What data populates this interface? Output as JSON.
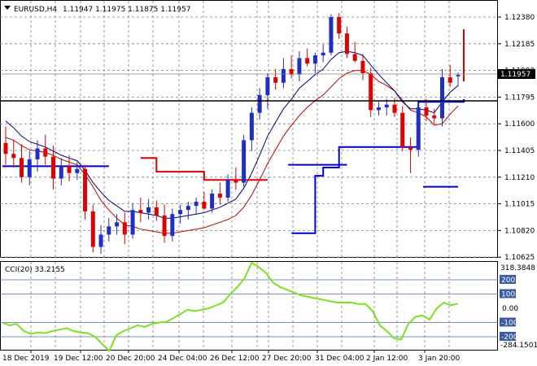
{
  "header": {
    "symbol": "EURUSD,H4",
    "ohlc": "1.11947 1.11975 1.11875 1.11957"
  },
  "price_axis": {
    "ticks": [
      "1.12380",
      "1.12185",
      "1.11990",
      "1.11795",
      "1.11600",
      "1.11405",
      "1.11210",
      "1.11015",
      "1.10820",
      "1.10625"
    ],
    "current_price": "1.11957"
  },
  "time_axis": {
    "labels": [
      "18 Dec 2019",
      "19 Dec 12:00",
      "20 Dec 20:00",
      "24 Dec 04:00",
      "26 Dec 12:00",
      "27 Dec 20:00",
      "31 Dec 04:00",
      "2 Jan 12:00",
      "3 Jan 20:00"
    ]
  },
  "cci_panel": {
    "title": "CCI(20) 33.2155",
    "axis_max": "318.3848",
    "axis_min": "-284.1501",
    "levels": [
      "200",
      "100",
      "0.00",
      "-100",
      "-200"
    ]
  },
  "colors": {
    "bull": "#1f2fc4",
    "bear": "#e00000",
    "cci": "#80e020",
    "support": "#0000cc",
    "resistance": "#dd0000",
    "ma_fast": "#000080",
    "ma_slow": "#c00000"
  },
  "chart_data": {
    "type": "candlestick",
    "y_range": [
      1.10625,
      1.12472
    ],
    "candles": [
      {
        "t": "18 Dec 2019",
        "o": 1.1146,
        "h": 1.1158,
        "l": 1.113,
        "c": 1.1138
      },
      {
        "t": "18 Dec",
        "o": 1.1138,
        "h": 1.1148,
        "l": 1.1128,
        "c": 1.1135
      },
      {
        "t": "18 Dec",
        "o": 1.1135,
        "h": 1.1145,
        "l": 1.1117,
        "c": 1.1121
      },
      {
        "t": "18 Dec",
        "o": 1.1121,
        "h": 1.114,
        "l": 1.1115,
        "c": 1.1134
      },
      {
        "t": "18 Dec",
        "o": 1.1134,
        "h": 1.1148,
        "l": 1.1125,
        "c": 1.1142
      },
      {
        "t": "18 Dec",
        "o": 1.1142,
        "h": 1.1152,
        "l": 1.113,
        "c": 1.1136
      },
      {
        "t": "18 Dec",
        "o": 1.1136,
        "h": 1.1144,
        "l": 1.1112,
        "c": 1.112
      },
      {
        "t": "19 Dec",
        "o": 1.112,
        "h": 1.1135,
        "l": 1.1115,
        "c": 1.1129
      },
      {
        "t": "19 Dec",
        "o": 1.1129,
        "h": 1.1137,
        "l": 1.1118,
        "c": 1.1124
      },
      {
        "t": "19 Dec",
        "o": 1.1124,
        "h": 1.1132,
        "l": 1.1119,
        "c": 1.1127
      },
      {
        "t": "19 Dec",
        "o": 1.1127,
        "h": 1.113,
        "l": 1.109,
        "c": 1.1096
      },
      {
        "t": "19 Dec",
        "o": 1.1096,
        "h": 1.1101,
        "l": 1.1066,
        "c": 1.107
      },
      {
        "t": "19 Dec",
        "o": 1.107,
        "h": 1.1086,
        "l": 1.1065,
        "c": 1.1079
      },
      {
        "t": "20 Dec",
        "o": 1.1079,
        "h": 1.1091,
        "l": 1.1074,
        "c": 1.1085
      },
      {
        "t": "20 Dec",
        "o": 1.1085,
        "h": 1.1094,
        "l": 1.1079,
        "c": 1.1088
      },
      {
        "t": "20 Dec",
        "o": 1.1088,
        "h": 1.1095,
        "l": 1.1072,
        "c": 1.1079
      },
      {
        "t": "20 Dec",
        "o": 1.1079,
        "h": 1.1102,
        "l": 1.1076,
        "c": 1.1097
      },
      {
        "t": "20 Dec",
        "o": 1.1097,
        "h": 1.1106,
        "l": 1.1088,
        "c": 1.1095
      },
      {
        "t": "20 Dec",
        "o": 1.1095,
        "h": 1.1105,
        "l": 1.109,
        "c": 1.1099
      },
      {
        "t": "23 Dec",
        "o": 1.1099,
        "h": 1.1104,
        "l": 1.1089,
        "c": 1.1093
      },
      {
        "t": "23 Dec",
        "o": 1.1093,
        "h": 1.1101,
        "l": 1.1073,
        "c": 1.1078
      },
      {
        "t": "23 Dec",
        "o": 1.1078,
        "h": 1.1098,
        "l": 1.1074,
        "c": 1.1094
      },
      {
        "t": "24 Dec",
        "o": 1.1094,
        "h": 1.1101,
        "l": 1.1087,
        "c": 1.1097
      },
      {
        "t": "24 Dec",
        "o": 1.1097,
        "h": 1.1103,
        "l": 1.109,
        "c": 1.11
      },
      {
        "t": "24 Dec",
        "o": 1.11,
        "h": 1.1106,
        "l": 1.1094,
        "c": 1.1103
      },
      {
        "t": "24 Dec",
        "o": 1.1103,
        "h": 1.111,
        "l": 1.1097,
        "c": 1.1098
      },
      {
        "t": "25 Dec",
        "o": 1.1098,
        "h": 1.1112,
        "l": 1.1095,
        "c": 1.1109
      },
      {
        "t": "25 Dec",
        "o": 1.1109,
        "h": 1.1117,
        "l": 1.1101,
        "c": 1.1106
      },
      {
        "t": "26 Dec",
        "o": 1.1106,
        "h": 1.1123,
        "l": 1.1103,
        "c": 1.1119
      },
      {
        "t": "26 Dec",
        "o": 1.1119,
        "h": 1.1128,
        "l": 1.1112,
        "c": 1.1117
      },
      {
        "t": "26 Dec",
        "o": 1.1117,
        "h": 1.1152,
        "l": 1.1114,
        "c": 1.1148
      },
      {
        "t": "26 Dec",
        "o": 1.1148,
        "h": 1.1172,
        "l": 1.114,
        "c": 1.1168
      },
      {
        "t": "27 Dec",
        "o": 1.1168,
        "h": 1.1186,
        "l": 1.1163,
        "c": 1.1181
      },
      {
        "t": "27 Dec",
        "o": 1.1181,
        "h": 1.1197,
        "l": 1.1171,
        "c": 1.1194
      },
      {
        "t": "27 Dec",
        "o": 1.1194,
        "h": 1.12,
        "l": 1.1185,
        "c": 1.119
      },
      {
        "t": "27 Dec",
        "o": 1.119,
        "h": 1.1208,
        "l": 1.1186,
        "c": 1.12
      },
      {
        "t": "30 Dec",
        "o": 1.12,
        "h": 1.121,
        "l": 1.1193,
        "c": 1.1196
      },
      {
        "t": "30 Dec",
        "o": 1.1196,
        "h": 1.1213,
        "l": 1.1191,
        "c": 1.1208
      },
      {
        "t": "30 Dec",
        "o": 1.1208,
        "h": 1.1215,
        "l": 1.1202,
        "c": 1.1204
      },
      {
        "t": "30 Dec",
        "o": 1.1204,
        "h": 1.1212,
        "l": 1.1197,
        "c": 1.121
      },
      {
        "t": "31 Dec",
        "o": 1.121,
        "h": 1.1218,
        "l": 1.1205,
        "c": 1.1212
      },
      {
        "t": "31 Dec",
        "o": 1.1212,
        "h": 1.124,
        "l": 1.121,
        "c": 1.1238
      },
      {
        "t": "31 Dec",
        "o": 1.1238,
        "h": 1.1241,
        "l": 1.1222,
        "c": 1.1226
      },
      {
        "t": "31 Dec",
        "o": 1.1226,
        "h": 1.1231,
        "l": 1.1208,
        "c": 1.1211
      },
      {
        "t": "2 Jan",
        "o": 1.1211,
        "h": 1.122,
        "l": 1.1205,
        "c": 1.1206
      },
      {
        "t": "2 Jan",
        "o": 1.1206,
        "h": 1.1211,
        "l": 1.1192,
        "c": 1.1197
      },
      {
        "t": "2 Jan",
        "o": 1.1197,
        "h": 1.1201,
        "l": 1.1165,
        "c": 1.117
      },
      {
        "t": "2 Jan",
        "o": 1.117,
        "h": 1.1176,
        "l": 1.1166,
        "c": 1.1172
      },
      {
        "t": "2 Jan",
        "o": 1.1172,
        "h": 1.1178,
        "l": 1.1166,
        "c": 1.1174
      },
      {
        "t": "2 Jan",
        "o": 1.1174,
        "h": 1.1179,
        "l": 1.1165,
        "c": 1.1168
      },
      {
        "t": "3 Jan",
        "o": 1.1168,
        "h": 1.1173,
        "l": 1.114,
        "c": 1.1143
      },
      {
        "t": "3 Jan",
        "o": 1.1143,
        "h": 1.115,
        "l": 1.1124,
        "c": 1.1141
      },
      {
        "t": "3 Jan",
        "o": 1.1141,
        "h": 1.1176,
        "l": 1.1136,
        "c": 1.1172
      },
      {
        "t": "3 Jan",
        "o": 1.1172,
        "h": 1.1178,
        "l": 1.1162,
        "c": 1.1166
      },
      {
        "t": "3 Jan",
        "o": 1.1166,
        "h": 1.1171,
        "l": 1.116,
        "c": 1.1164
      },
      {
        "t": "3 Jan 20:00",
        "o": 1.1164,
        "h": 1.12,
        "l": 1.1158,
        "c": 1.1194
      },
      {
        "t": "3 Jan",
        "o": 1.1194,
        "h": 1.1203,
        "l": 1.1187,
        "c": 1.119
      },
      {
        "t": "3 Jan",
        "o": 1.11947,
        "h": 1.11975,
        "l": 1.11875,
        "c": 1.11957
      }
    ],
    "ma_fast": [
      1.1162,
      1.1157,
      1.1151,
      1.1147,
      1.1145,
      1.1143,
      1.114,
      1.1137,
      1.1135,
      1.1133,
      1.1126,
      1.1117,
      1.111,
      1.1104,
      1.11,
      1.1096,
      1.1096,
      1.1095,
      1.1094,
      1.1093,
      1.1091,
      1.1091,
      1.1092,
      1.1093,
      1.1094,
      1.1095,
      1.1097,
      1.1099,
      1.1102,
      1.1105,
      1.1113,
      1.1124,
      1.1137,
      1.1151,
      1.1161,
      1.1171,
      1.1178,
      1.1186,
      1.1191,
      1.1196,
      1.12,
      1.1207,
      1.1212,
      1.1213,
      1.1212,
      1.121,
      1.1203,
      1.1196,
      1.119,
      1.1184,
      1.1176,
      1.1171,
      1.1171,
      1.117,
      1.1168,
      1.1176,
      1.1183,
      1.1188
    ],
    "ma_slow": [
      1.115,
      1.1148,
      1.1144,
      1.1141,
      1.114,
      1.1139,
      1.1137,
      1.1134,
      1.1132,
      1.113,
      1.1123,
      1.1114,
      1.1104,
      1.1097,
      1.1091,
      1.1086,
      1.1085,
      1.1083,
      1.1082,
      1.1081,
      1.108,
      1.108,
      1.1081,
      1.1082,
      1.1083,
      1.1084,
      1.1086,
      1.1088,
      1.109,
      1.1093,
      1.1099,
      1.1108,
      1.1119,
      1.1131,
      1.1141,
      1.1151,
      1.1159,
      1.1166,
      1.1172,
      1.1177,
      1.1181,
      1.1187,
      1.1193,
      1.1197,
      1.1199,
      1.1199,
      1.1196,
      1.1191,
      1.1188,
      1.1184,
      1.1177,
      1.117,
      1.1168,
      1.1165,
      1.1159,
      1.116,
      1.1167,
      1.1173
    ],
    "support_segments": [
      {
        "from": 0,
        "to": 13,
        "value": 1.1129
      },
      {
        "from": 36,
        "to": 43,
        "value": 1.113
      },
      {
        "from": 53,
        "to": 66,
        "value": 1.1114
      }
    ],
    "trend_steps_support": [
      [
        36,
        1.108
      ],
      [
        39,
        1.1122
      ],
      [
        40,
        1.1128
      ],
      [
        42,
        1.1143
      ],
      [
        50,
        1.1143
      ],
      [
        52,
        1.1176
      ],
      [
        55,
        1.1176
      ],
      [
        69,
        1.1178
      ]
    ],
    "resistance_steps": [
      [
        17,
        1.1135
      ],
      [
        19,
        1.1125
      ],
      [
        22,
        1.1125
      ],
      [
        25,
        1.1119
      ],
      [
        27,
        1.1119
      ],
      [
        33,
        1.1119
      ]
    ],
    "resistance_late": [
      [
        60,
        1.1229
      ],
      [
        63,
        1.1191
      ],
      [
        69,
        1.1191
      ]
    ],
    "cci": [
      -100,
      -120,
      -110,
      -160,
      -180,
      -170,
      -175,
      -160,
      -150,
      -140,
      -160,
      -170,
      -175,
      -200,
      -250,
      -300,
      -190,
      -160,
      -140,
      -120,
      -130,
      -110,
      -100,
      -95,
      -70,
      -40,
      -10,
      -20,
      -10,
      0,
      20,
      40,
      100,
      150,
      210,
      320,
      290,
      250,
      180,
      150,
      130,
      110,
      90,
      80,
      70,
      60,
      50,
      40,
      40,
      40,
      30,
      30,
      -20,
      -120,
      -160,
      -210,
      -220,
      -110,
      -60,
      -50,
      -80,
      0,
      40,
      20,
      33
    ]
  }
}
